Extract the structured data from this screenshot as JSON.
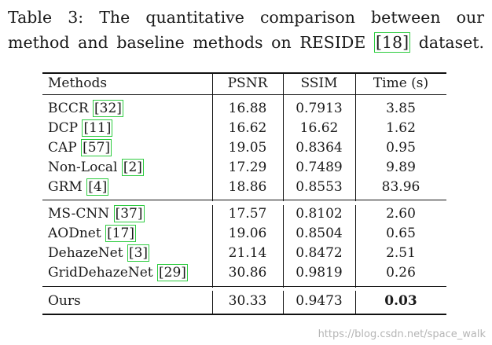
{
  "caption": {
    "line1": "Table 3: The quantitative comparison between our",
    "line2_before": "method and baseline methods on RESIDE ",
    "line2_cite": "[18]",
    "line2_after": " dataset."
  },
  "table": {
    "headers": {
      "method": "Methods",
      "psnr": "PSNR",
      "ssim": "SSIM",
      "time": "Time (s)"
    },
    "group1": [
      {
        "method": "BCCR",
        "cite": "[32]",
        "psnr": "16.88",
        "ssim": "0.7913",
        "time": "3.85"
      },
      {
        "method": "DCP",
        "cite": "[11]",
        "psnr": "16.62",
        "ssim": "16.62",
        "time": "1.62"
      },
      {
        "method": "CAP",
        "cite": "[57]",
        "psnr": "19.05",
        "ssim": "0.8364",
        "time": "0.95"
      },
      {
        "method": "Non-Local",
        "cite": "[2]",
        "psnr": "17.29",
        "ssim": "0.7489",
        "time": "9.89"
      },
      {
        "method": "GRM",
        "cite": "[4]",
        "psnr": "18.86",
        "ssim": "0.8553",
        "time": "83.96"
      }
    ],
    "group2": [
      {
        "method": "MS-CNN",
        "cite": "[37]",
        "psnr": "17.57",
        "ssim": "0.8102",
        "time": "2.60"
      },
      {
        "method": "AODnet",
        "cite": "[17]",
        "psnr": "19.06",
        "ssim": "0.8504",
        "time": "0.65"
      },
      {
        "method": "DehazeNet",
        "cite": "[3]",
        "psnr": "21.14",
        "ssim": "0.8472",
        "time": "2.51"
      },
      {
        "method": "GridDehazeNet",
        "cite": "[29]",
        "psnr": "30.86",
        "ssim": "0.9819",
        "time": "0.26"
      }
    ],
    "ours": {
      "method": "Ours",
      "psnr": "30.33",
      "ssim": "0.9473",
      "time": "0.03"
    }
  },
  "watermark": "https://blog.csdn.net/space_walk",
  "colors": {
    "cite_box": "#2ecc40",
    "rules": "#111111",
    "watermark": "#b5b5b5"
  }
}
